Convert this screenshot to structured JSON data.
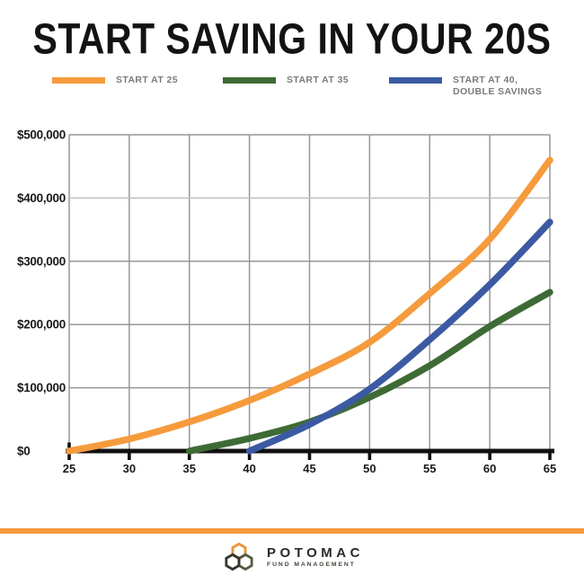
{
  "title": "START SAVING IN YOUR 20S",
  "legend": [
    {
      "label": "START AT 25",
      "color": "#F59B3D"
    },
    {
      "label": "START AT 35",
      "color": "#3E6B35"
    },
    {
      "label": "START AT 40,\nDOUBLE SAVINGS",
      "color": "#3C5AA3"
    }
  ],
  "chart_data": {
    "type": "line",
    "x": [
      25,
      30,
      35,
      40,
      45,
      50,
      55,
      60,
      65
    ],
    "x_tick_labels": [
      "25",
      "30",
      "35",
      "40",
      "45",
      "50",
      "55",
      "60",
      "65"
    ],
    "y_ticks": [
      0,
      100000,
      200000,
      300000,
      400000,
      500000
    ],
    "y_tick_labels": [
      "$0",
      "$100,000",
      "$200,000",
      "$300,000",
      "$400,000",
      "$500,000"
    ],
    "xlim": [
      25,
      65
    ],
    "ylim": [
      0,
      500000
    ],
    "grid": true,
    "legend_position": "top",
    "title": "START SAVING IN YOUR 20S",
    "xlabel": "",
    "ylabel": "",
    "series": [
      {
        "name": "Start at 25",
        "color": "#F59B3D",
        "start_age": 25,
        "values": [
          0,
          19000,
          46000,
          80000,
          122000,
          172000,
          249000,
          335000,
          460000
        ]
      },
      {
        "name": "Start at 35",
        "color": "#3E6B35",
        "start_age": 35,
        "values": [
          null,
          null,
          0,
          20000,
          46000,
          85000,
          135000,
          197000,
          251000
        ]
      },
      {
        "name": "Start at 40, double savings",
        "color": "#3C5AA3",
        "start_age": 40,
        "values": [
          null,
          null,
          null,
          0,
          42000,
          98000,
          176000,
          263000,
          362000
        ]
      }
    ]
  },
  "footer": {
    "brand_name": "POTOMAC",
    "brand_sub": "FUND MANAGEMENT"
  },
  "colors": {
    "accent_orange": "#F59B3D",
    "green": "#3E6B35",
    "blue": "#3C5AA3",
    "grid": "#979797",
    "grid_light": "#bfbfbf",
    "axis": "#101010",
    "tick_label": "#1a1a1a",
    "legend_text": "#7b7b7b",
    "logo_hex_orange": "#EF923B",
    "logo_hex_charcoal": "#34352C",
    "logo_hex_olive": "#575C45"
  }
}
